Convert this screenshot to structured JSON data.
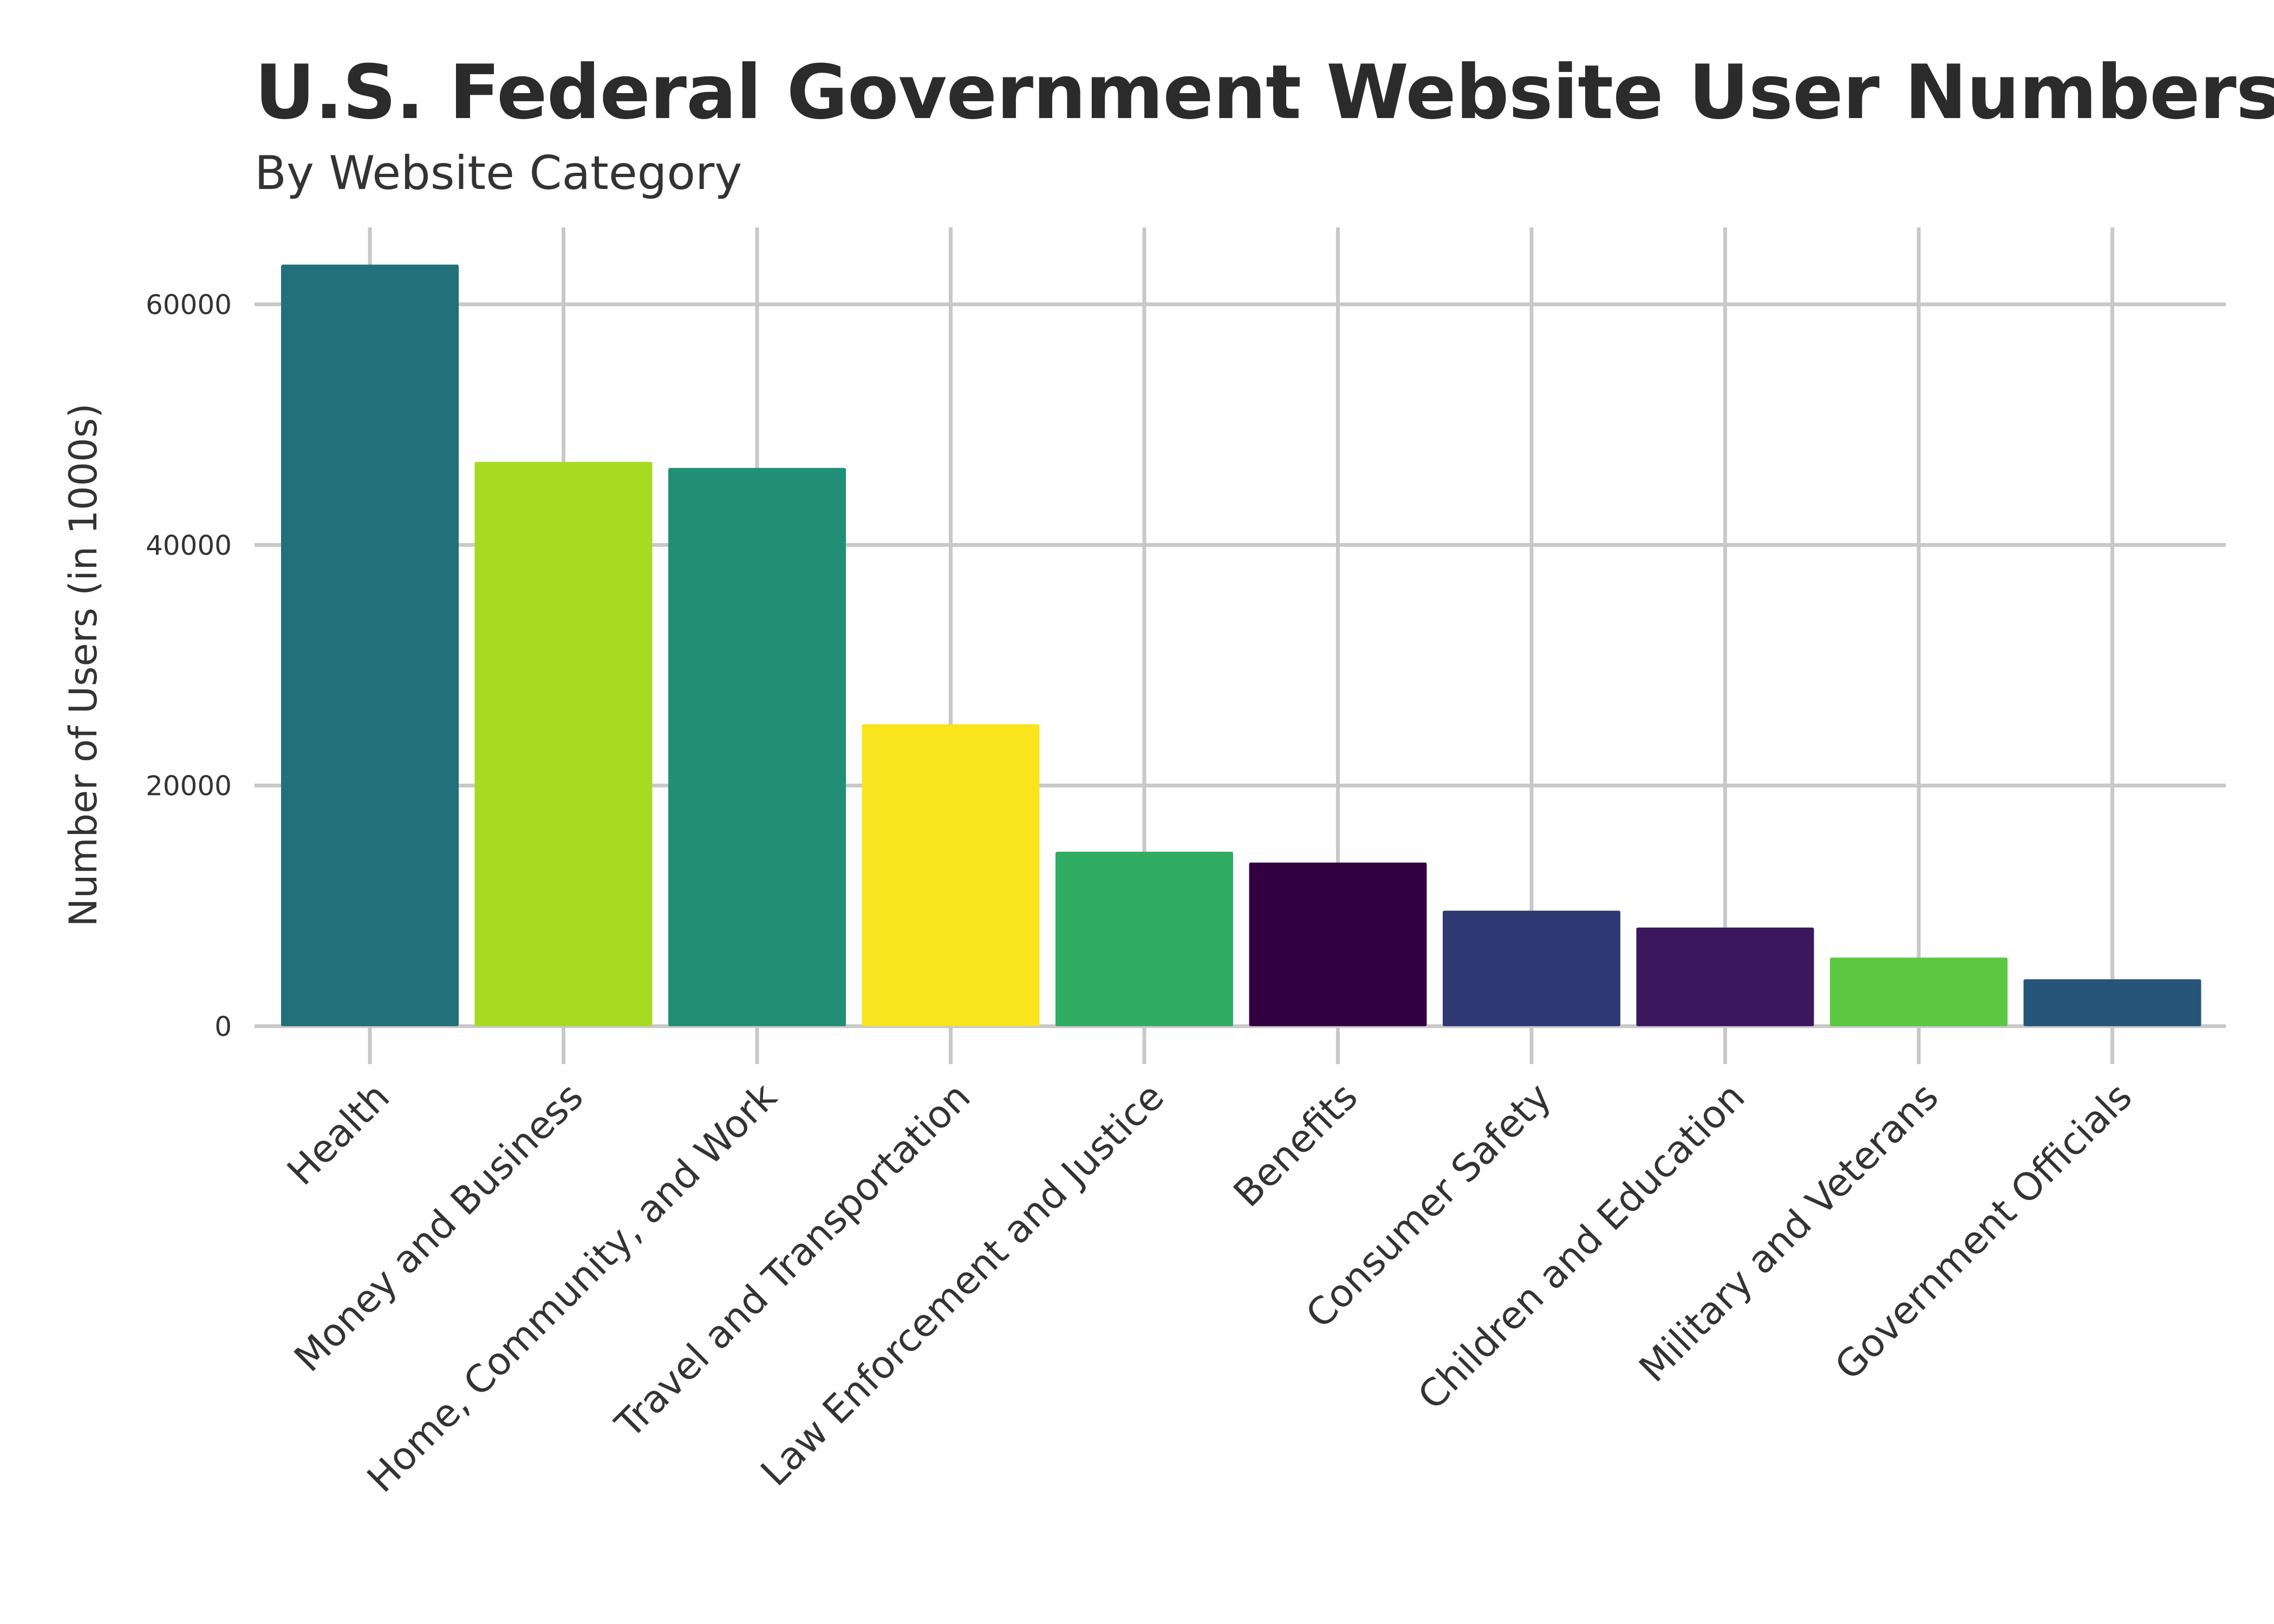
{
  "chart_data": {
    "type": "bar",
    "title": "U.S. Federal Government Website User Numbers",
    "subtitle": "By Website Category",
    "xlabel": "",
    "ylabel": "Number of Users (in 1000s)",
    "ylim": [
      0,
      66000
    ],
    "yticks": [
      0,
      20000,
      40000,
      60000
    ],
    "ytick_labels": [
      "0",
      "20000",
      "40000",
      "60000"
    ],
    "grid": true,
    "legend": "none",
    "categories": [
      "Health",
      "Money and Business",
      "Home, Community, and Work",
      "Travel and Transportation",
      "Law Enforcement and Justice",
      "Benefits",
      "Consumer Safety",
      "Children and Education",
      "Military and Veterans",
      "Government Officials"
    ],
    "values": [
      63300,
      46900,
      46400,
      25100,
      14500,
      13600,
      9600,
      8200,
      5700,
      3900
    ],
    "colors": [
      "#21707a",
      "#a6db22",
      "#218f76",
      "#fae41e",
      "#30ac63",
      "#330042",
      "#2e3873",
      "#3b175e",
      "#5ec742",
      "#26557a"
    ]
  }
}
